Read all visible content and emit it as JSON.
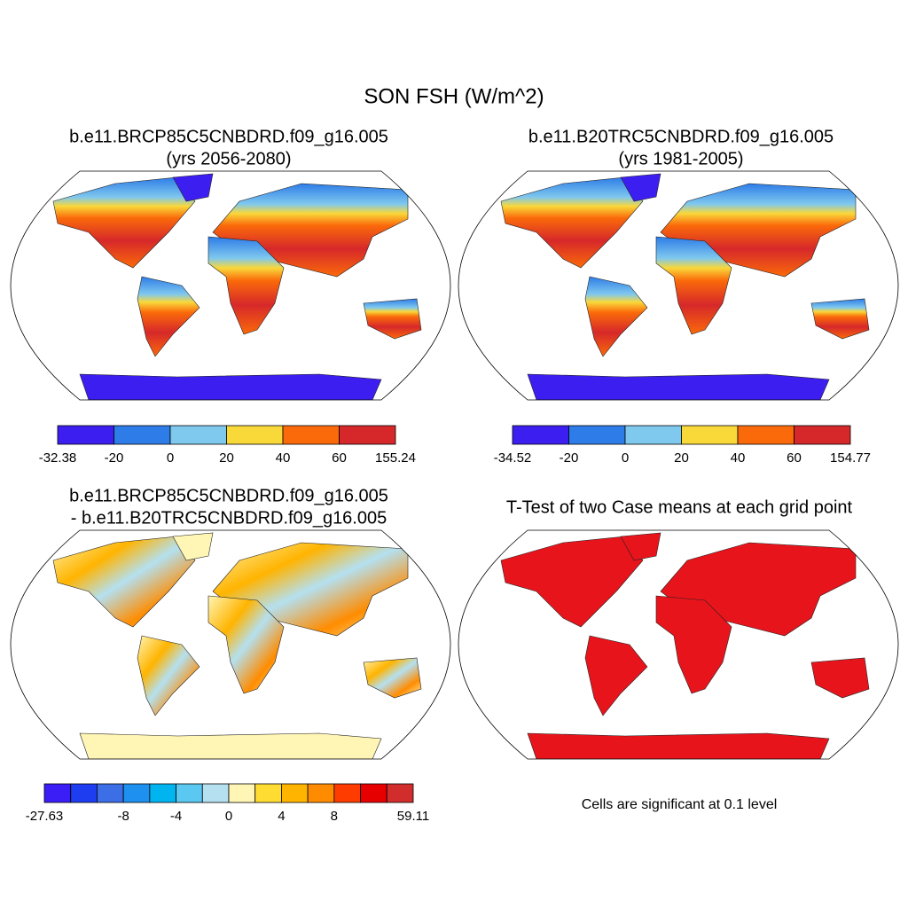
{
  "title": "SON FSH (W/m^2)",
  "panels": [
    {
      "title": [
        "b.e11.BRCP85C5CNBDRD.f09_g16.005",
        "(yrs 2056-2080)"
      ],
      "colorbar": {
        "colors": [
          "#3c1ef0",
          "#2d7ce8",
          "#7fc8ee",
          "#f9d83a",
          "#fa6a0a",
          "#d6282a"
        ],
        "labels": [
          -32.38,
          -20,
          0,
          20,
          40,
          60,
          155.24
        ]
      }
    },
    {
      "title": [
        "b.e11.B20TRC5CNBDRD.f09_g16.005",
        "(yrs 1981-2005)"
      ],
      "colorbar": {
        "colors": [
          "#3c1ef0",
          "#2d7ce8",
          "#7fc8ee",
          "#f9d83a",
          "#fa6a0a",
          "#d6282a"
        ],
        "labels": [
          -34.52,
          -20,
          0,
          20,
          40,
          60,
          154.77
        ]
      }
    },
    {
      "title": [
        "b.e11.BRCP85C5CNBDRD.f09_g16.005",
        "- b.e11.B20TRC5CNBDRD.f09_g16.005"
      ],
      "colorbar": {
        "colors": [
          "#3a1ef5",
          "#1e3cf0",
          "#3c6ee6",
          "#1e90f0",
          "#00b4f0",
          "#5ac8f0",
          "#b4e0f0",
          "#fff5b4",
          "#ffdc32",
          "#ffb400",
          "#ff8c00",
          "#ff3c00",
          "#e60000",
          "#d22d2d"
        ],
        "labels": [
          -27.63,
          -8,
          -4,
          0,
          4,
          8,
          59.11
        ]
      }
    },
    {
      "title": [
        "T-Test of two Case means at each grid point"
      ]
    }
  ],
  "note": "Cells are significant at 0.1 level"
}
